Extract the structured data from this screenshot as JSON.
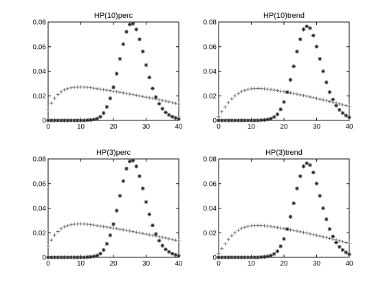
{
  "chart_data": [
    {
      "type": "scatter",
      "title": "HP(10)perc",
      "xlim": [
        0,
        40
      ],
      "ylim": [
        0,
        0.08
      ],
      "xticks": [
        "0",
        "10",
        "20",
        "30",
        "40"
      ],
      "yticks": [
        "0",
        "0.02",
        "0.04",
        "0.06",
        "0.08"
      ],
      "series": [
        {
          "marker": "plus",
          "x": [
            0,
            1,
            2,
            3,
            4,
            5,
            6,
            7,
            8,
            9,
            10,
            11,
            12,
            13,
            14,
            15,
            16,
            17,
            18,
            19,
            20,
            21,
            22,
            23,
            24,
            25,
            26,
            27,
            28,
            29,
            30,
            31,
            32,
            33,
            34,
            35,
            36,
            37,
            38,
            39,
            40
          ],
          "y": [
            0.009,
            0.014,
            0.018,
            0.021,
            0.0232,
            0.0248,
            0.0258,
            0.0265,
            0.0269,
            0.0271,
            0.0272,
            0.0271,
            0.0269,
            0.0266,
            0.0262,
            0.0258,
            0.0254,
            0.025,
            0.0246,
            0.0242,
            0.0238,
            0.0233,
            0.0229,
            0.0224,
            0.0219,
            0.0214,
            0.0209,
            0.0204,
            0.0199,
            0.0194,
            0.0189,
            0.0184,
            0.0179,
            0.0174,
            0.0168,
            0.0163,
            0.0157,
            0.0151,
            0.0145,
            0.0139,
            0.0133
          ]
        },
        {
          "marker": "star",
          "x": [
            0,
            1,
            2,
            3,
            4,
            5,
            6,
            7,
            8,
            9,
            10,
            11,
            12,
            13,
            14,
            15,
            16,
            17,
            18,
            19,
            20,
            21,
            22,
            23,
            24,
            25,
            26,
            27,
            28,
            29,
            30,
            31,
            32,
            33,
            34,
            35,
            36,
            37,
            38,
            39,
            40
          ],
          "y": [
            0,
            0,
            0,
            0,
            0,
            0,
            0,
            0,
            0,
            0,
            0,
            0,
            0.0002,
            0.0004,
            0.0008,
            0.0015,
            0.003,
            0.006,
            0.011,
            0.018,
            0.027,
            0.038,
            0.05,
            0.062,
            0.072,
            0.078,
            0.0785,
            0.074,
            0.066,
            0.056,
            0.045,
            0.035,
            0.026,
            0.019,
            0.0135,
            0.0095,
            0.0065,
            0.0045,
            0.003,
            0.002,
            0.0012
          ]
        }
      ]
    },
    {
      "type": "scatter",
      "title": "HP(10)trend",
      "xlim": [
        0,
        40
      ],
      "ylim": [
        0,
        0.08
      ],
      "xticks": [
        "0",
        "10",
        "20",
        "30",
        "40"
      ],
      "yticks": [
        "0",
        "0.02",
        "0.04",
        "0.06",
        "0.08"
      ],
      "series": [
        {
          "marker": "plus",
          "x": [
            0,
            1,
            2,
            3,
            4,
            5,
            6,
            7,
            8,
            9,
            10,
            11,
            12,
            13,
            14,
            15,
            16,
            17,
            18,
            19,
            20,
            21,
            22,
            23,
            24,
            25,
            26,
            27,
            28,
            29,
            30,
            31,
            32,
            33,
            34,
            35,
            36,
            37,
            38,
            39,
            40
          ],
          "y": [
            0.003,
            0.007,
            0.011,
            0.0145,
            0.0175,
            0.02,
            0.022,
            0.0235,
            0.0245,
            0.0252,
            0.0257,
            0.0259,
            0.026,
            0.0259,
            0.0257,
            0.0254,
            0.0251,
            0.0247,
            0.0243,
            0.0238,
            0.0234,
            0.0229,
            0.0224,
            0.0219,
            0.0213,
            0.0208,
            0.0203,
            0.0197,
            0.0191,
            0.0185,
            0.0179,
            0.0173,
            0.0167,
            0.016,
            0.0154,
            0.0148,
            0.0141,
            0.0134,
            0.0127,
            0.012,
            0.0113
          ]
        },
        {
          "marker": "star",
          "x": [
            0,
            1,
            2,
            3,
            4,
            5,
            6,
            7,
            8,
            9,
            10,
            11,
            12,
            13,
            14,
            15,
            16,
            17,
            18,
            19,
            20,
            21,
            22,
            23,
            24,
            25,
            26,
            27,
            28,
            29,
            30,
            31,
            32,
            33,
            34,
            35,
            36,
            37,
            38,
            39,
            40
          ],
          "y": [
            0,
            0,
            0,
            0,
            0,
            0,
            0,
            0,
            0,
            0,
            0,
            0,
            0,
            0.0002,
            0.0004,
            0.0008,
            0.0015,
            0.0028,
            0.005,
            0.009,
            0.015,
            0.023,
            0.033,
            0.044,
            0.056,
            0.066,
            0.074,
            0.0765,
            0.075,
            0.069,
            0.06,
            0.05,
            0.04,
            0.031,
            0.023,
            0.017,
            0.012,
            0.0085,
            0.006,
            0.004,
            0.0025
          ]
        }
      ]
    },
    {
      "type": "scatter",
      "title": "HP(3)perc",
      "xlim": [
        0,
        40
      ],
      "ylim": [
        0,
        0.08
      ],
      "xticks": [
        "0",
        "10",
        "20",
        "30",
        "40"
      ],
      "yticks": [
        "0",
        "0.02",
        "0.04",
        "0.06",
        "0.08"
      ],
      "series": [
        {
          "marker": "plus",
          "x": [
            0,
            1,
            2,
            3,
            4,
            5,
            6,
            7,
            8,
            9,
            10,
            11,
            12,
            13,
            14,
            15,
            16,
            17,
            18,
            19,
            20,
            21,
            22,
            23,
            24,
            25,
            26,
            27,
            28,
            29,
            30,
            31,
            32,
            33,
            34,
            35,
            36,
            37,
            38,
            39,
            40
          ],
          "y": [
            0.009,
            0.014,
            0.018,
            0.021,
            0.0232,
            0.0248,
            0.0258,
            0.0265,
            0.0269,
            0.0271,
            0.0272,
            0.0271,
            0.0269,
            0.0266,
            0.0262,
            0.0258,
            0.0254,
            0.025,
            0.0246,
            0.0242,
            0.0238,
            0.0233,
            0.0229,
            0.0224,
            0.0219,
            0.0214,
            0.0209,
            0.0204,
            0.0199,
            0.0194,
            0.0189,
            0.0184,
            0.0179,
            0.0174,
            0.0168,
            0.0163,
            0.0157,
            0.0151,
            0.0145,
            0.0139,
            0.0133
          ]
        },
        {
          "marker": "star",
          "x": [
            0,
            1,
            2,
            3,
            4,
            5,
            6,
            7,
            8,
            9,
            10,
            11,
            12,
            13,
            14,
            15,
            16,
            17,
            18,
            19,
            20,
            21,
            22,
            23,
            24,
            25,
            26,
            27,
            28,
            29,
            30,
            31,
            32,
            33,
            34,
            35,
            36,
            37,
            38,
            39,
            40
          ],
          "y": [
            0,
            0,
            0,
            0,
            0,
            0,
            0,
            0,
            0,
            0,
            0,
            0,
            0.0002,
            0.0004,
            0.0008,
            0.0015,
            0.003,
            0.006,
            0.011,
            0.018,
            0.027,
            0.038,
            0.05,
            0.062,
            0.072,
            0.078,
            0.0785,
            0.074,
            0.066,
            0.056,
            0.045,
            0.035,
            0.026,
            0.019,
            0.0135,
            0.0095,
            0.0065,
            0.0045,
            0.003,
            0.002,
            0.0012
          ]
        }
      ]
    },
    {
      "type": "scatter",
      "title": "HP(3)trend",
      "xlim": [
        0,
        40
      ],
      "ylim": [
        0,
        0.08
      ],
      "xticks": [
        "0",
        "10",
        "20",
        "30",
        "40"
      ],
      "yticks": [
        "0",
        "0.02",
        "0.04",
        "0.06",
        "0.08"
      ],
      "series": [
        {
          "marker": "plus",
          "x": [
            0,
            1,
            2,
            3,
            4,
            5,
            6,
            7,
            8,
            9,
            10,
            11,
            12,
            13,
            14,
            15,
            16,
            17,
            18,
            19,
            20,
            21,
            22,
            23,
            24,
            25,
            26,
            27,
            28,
            29,
            30,
            31,
            32,
            33,
            34,
            35,
            36,
            37,
            38,
            39,
            40
          ],
          "y": [
            0.003,
            0.007,
            0.011,
            0.0145,
            0.0175,
            0.02,
            0.022,
            0.0235,
            0.0245,
            0.0252,
            0.0257,
            0.0259,
            0.026,
            0.0259,
            0.0257,
            0.0254,
            0.0251,
            0.0247,
            0.0243,
            0.0238,
            0.0234,
            0.0229,
            0.0224,
            0.0219,
            0.0213,
            0.0208,
            0.0203,
            0.0197,
            0.0191,
            0.0185,
            0.0179,
            0.0173,
            0.0167,
            0.016,
            0.0154,
            0.0148,
            0.0141,
            0.0134,
            0.0127,
            0.012,
            0.0113
          ]
        },
        {
          "marker": "star",
          "x": [
            0,
            1,
            2,
            3,
            4,
            5,
            6,
            7,
            8,
            9,
            10,
            11,
            12,
            13,
            14,
            15,
            16,
            17,
            18,
            19,
            20,
            21,
            22,
            23,
            24,
            25,
            26,
            27,
            28,
            29,
            30,
            31,
            32,
            33,
            34,
            35,
            36,
            37,
            38,
            39,
            40
          ],
          "y": [
            0,
            0,
            0,
            0,
            0,
            0,
            0,
            0,
            0,
            0,
            0,
            0,
            0,
            0.0002,
            0.0004,
            0.0008,
            0.0015,
            0.0028,
            0.005,
            0.009,
            0.015,
            0.023,
            0.033,
            0.044,
            0.056,
            0.066,
            0.074,
            0.0765,
            0.075,
            0.069,
            0.06,
            0.05,
            0.04,
            0.031,
            0.023,
            0.017,
            0.012,
            0.0085,
            0.006,
            0.004,
            0.0025
          ]
        }
      ]
    }
  ]
}
